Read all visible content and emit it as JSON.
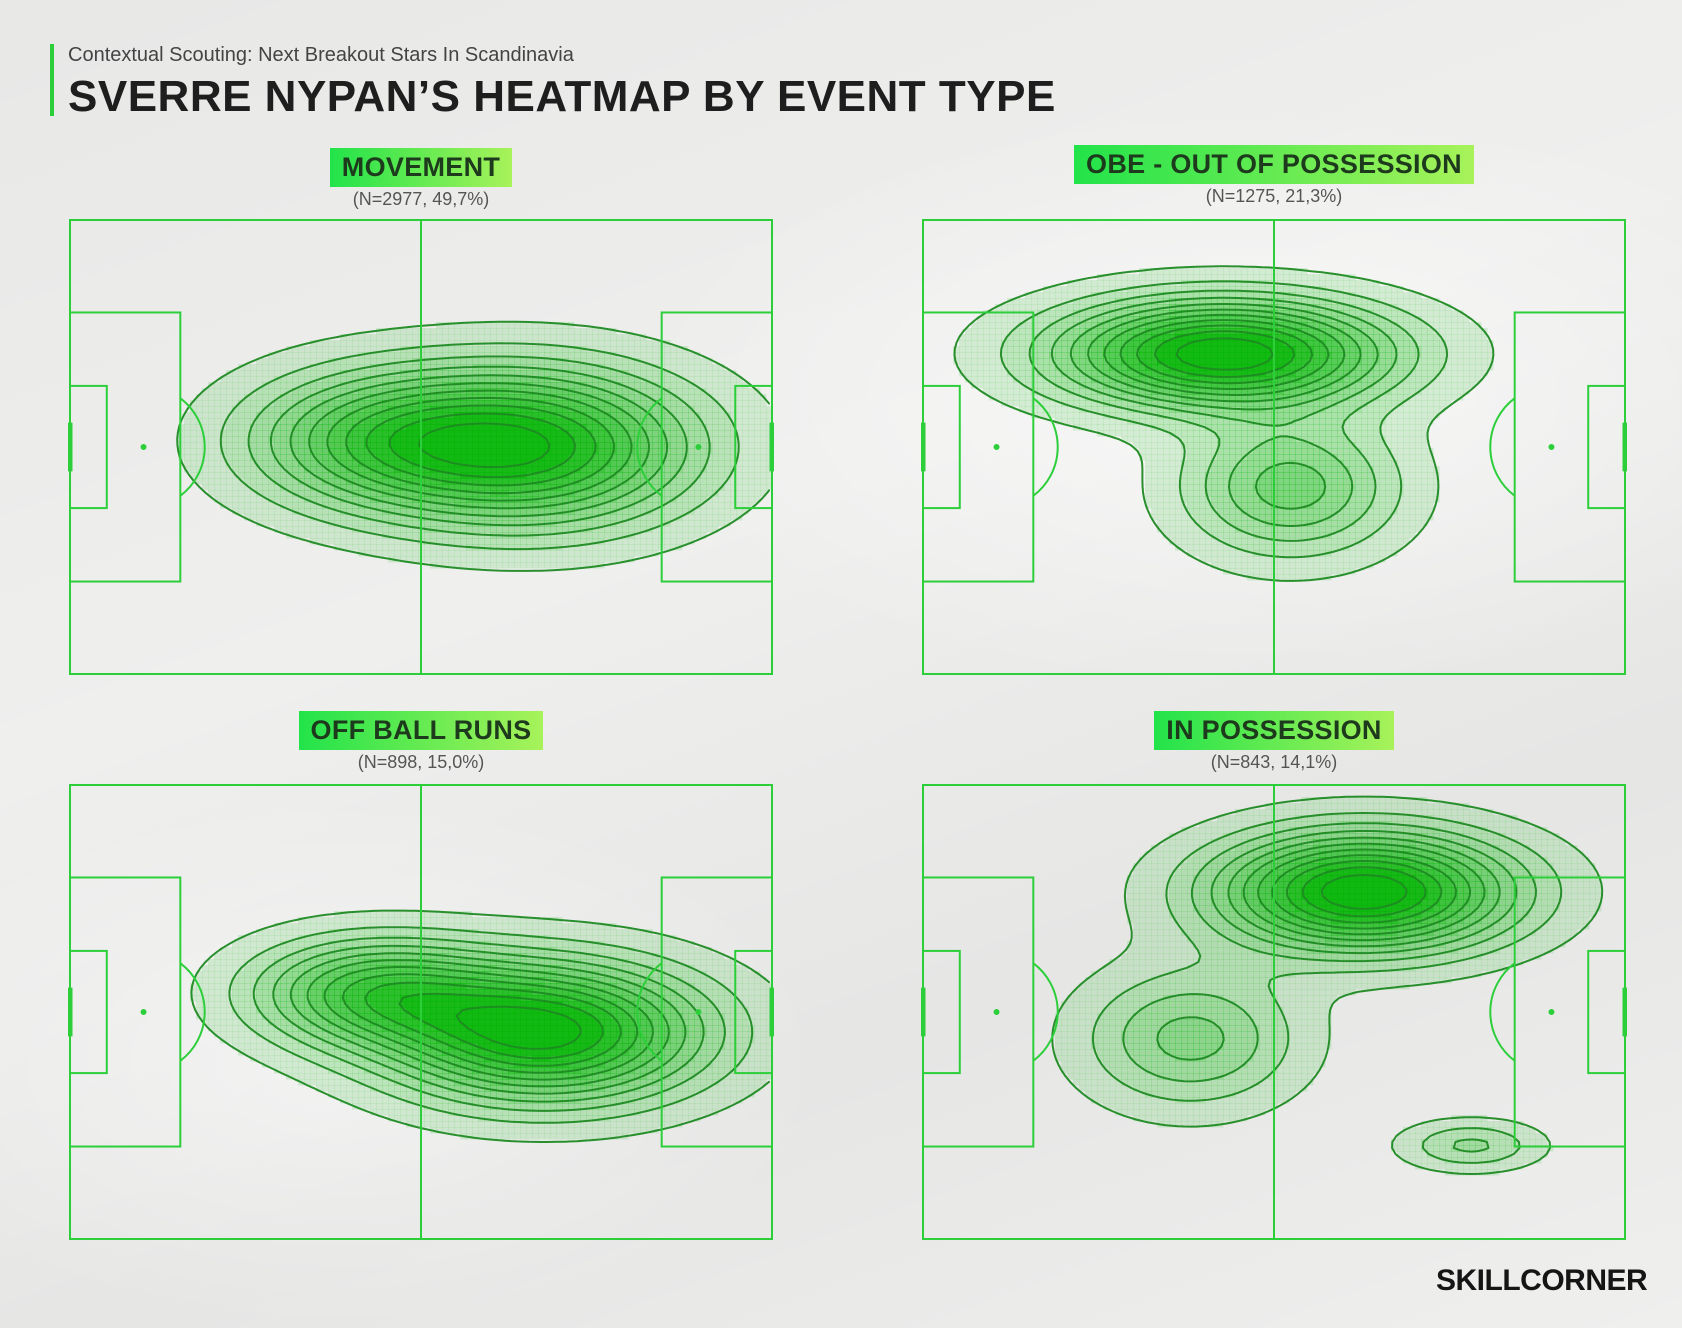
{
  "header": {
    "subtitle": "Contextual Scouting: Next Breakout Stars In Scandinavia",
    "title": "SVERRE NYPAN’S HEATMAP BY EVENT TYPE"
  },
  "brand": "SKILLCORNER",
  "colors": {
    "pitch_line": "#2ccf3a",
    "contour_line": "#1e8a22",
    "density_fill": "#00b400",
    "label_gradient_start": "#22e34a",
    "label_gradient_end": "#a8f25a"
  },
  "chart_data": [
    {
      "type": "heatmap",
      "title": "MOVEMENT",
      "subtitle": "(N=2977, 49,7%)",
      "events": 2977,
      "share_percent": 49.7,
      "pitch_length": 105,
      "pitch_width": 68,
      "peak": {
        "x": 69,
        "y": 34
      },
      "spread": {
        "x": 33,
        "y": 16
      },
      "lobes": [
        {
          "x": 45,
          "y": 35,
          "sx": 28,
          "sy": 14,
          "w": 0.55
        }
      ],
      "levels": 11
    },
    {
      "type": "heatmap",
      "title": "OBE - OUT OF POSSESSION",
      "subtitle": "(N=1275, 21,3%)",
      "events": 1275,
      "share_percent": 21.3,
      "pitch_length": 105,
      "pitch_width": 68,
      "peak": {
        "x": 45,
        "y": 48
      },
      "spread": {
        "x": 34,
        "y": 11
      },
      "lobes": [
        {
          "x": 55,
          "y": 28,
          "sx": 22,
          "sy": 14,
          "w": 0.45
        }
      ],
      "levels": 11
    },
    {
      "type": "heatmap",
      "title": "OFF BALL RUNS",
      "subtitle": "(N=898, 15,0%)",
      "events": 898,
      "share_percent": 15.0,
      "pitch_length": 105,
      "pitch_width": 68,
      "peak": {
        "x": 71,
        "y": 31
      },
      "spread": {
        "x": 32,
        "y": 14
      },
      "lobes": [
        {
          "x": 45,
          "y": 37,
          "sx": 25,
          "sy": 11,
          "w": 0.6
        }
      ],
      "levels": 11
    },
    {
      "type": "heatmap",
      "title": "IN POSSESSION",
      "subtitle": "(N=843, 14,1%)",
      "events": 843,
      "share_percent": 14.1,
      "pitch_length": 105,
      "pitch_width": 68,
      "peak": {
        "x": 66,
        "y": 52
      },
      "spread": {
        "x": 30,
        "y": 12
      },
      "lobes": [
        {
          "x": 40,
          "y": 30,
          "sx": 22,
          "sy": 14,
          "w": 0.35
        },
        {
          "x": 82,
          "y": 14,
          "sx": 14,
          "sy": 5,
          "w": 0.25
        }
      ],
      "levels": 11
    }
  ]
}
